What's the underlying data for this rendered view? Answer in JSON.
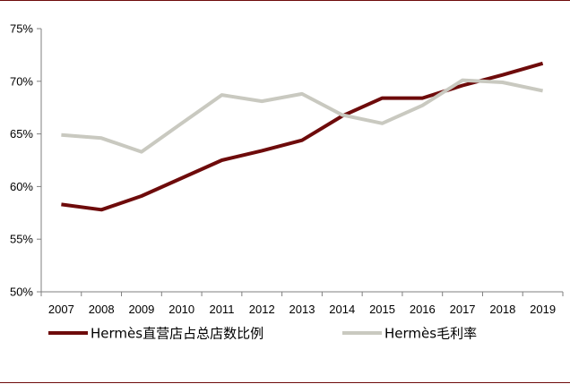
{
  "chart_data": {
    "type": "line",
    "title": "",
    "xlabel": "",
    "ylabel": "",
    "x": [
      "2007",
      "2008",
      "2009",
      "2010",
      "2011",
      "2012",
      "2013",
      "2014",
      "2015",
      "2016",
      "2017",
      "2018",
      "2019"
    ],
    "ylim": [
      50,
      75
    ],
    "yticks": [
      50,
      55,
      60,
      65,
      70,
      75
    ],
    "ytick_labels": [
      "50%",
      "55%",
      "60%",
      "65%",
      "70%",
      "75%"
    ],
    "grid": false,
    "legend_position": "bottom",
    "series": [
      {
        "name": "Hermès直营店占总店数比例",
        "color": "#6e0b0b",
        "values": [
          58.3,
          57.8,
          59.1,
          60.8,
          62.5,
          63.4,
          64.4,
          66.7,
          68.4,
          68.4,
          69.6,
          70.6,
          71.7
        ]
      },
      {
        "name": "Hermès毛利率",
        "color": "#c9c9c0",
        "values": [
          64.9,
          64.6,
          63.3,
          66.0,
          68.7,
          68.1,
          68.8,
          66.8,
          66.0,
          67.7,
          70.1,
          69.9,
          69.1
        ]
      }
    ]
  }
}
